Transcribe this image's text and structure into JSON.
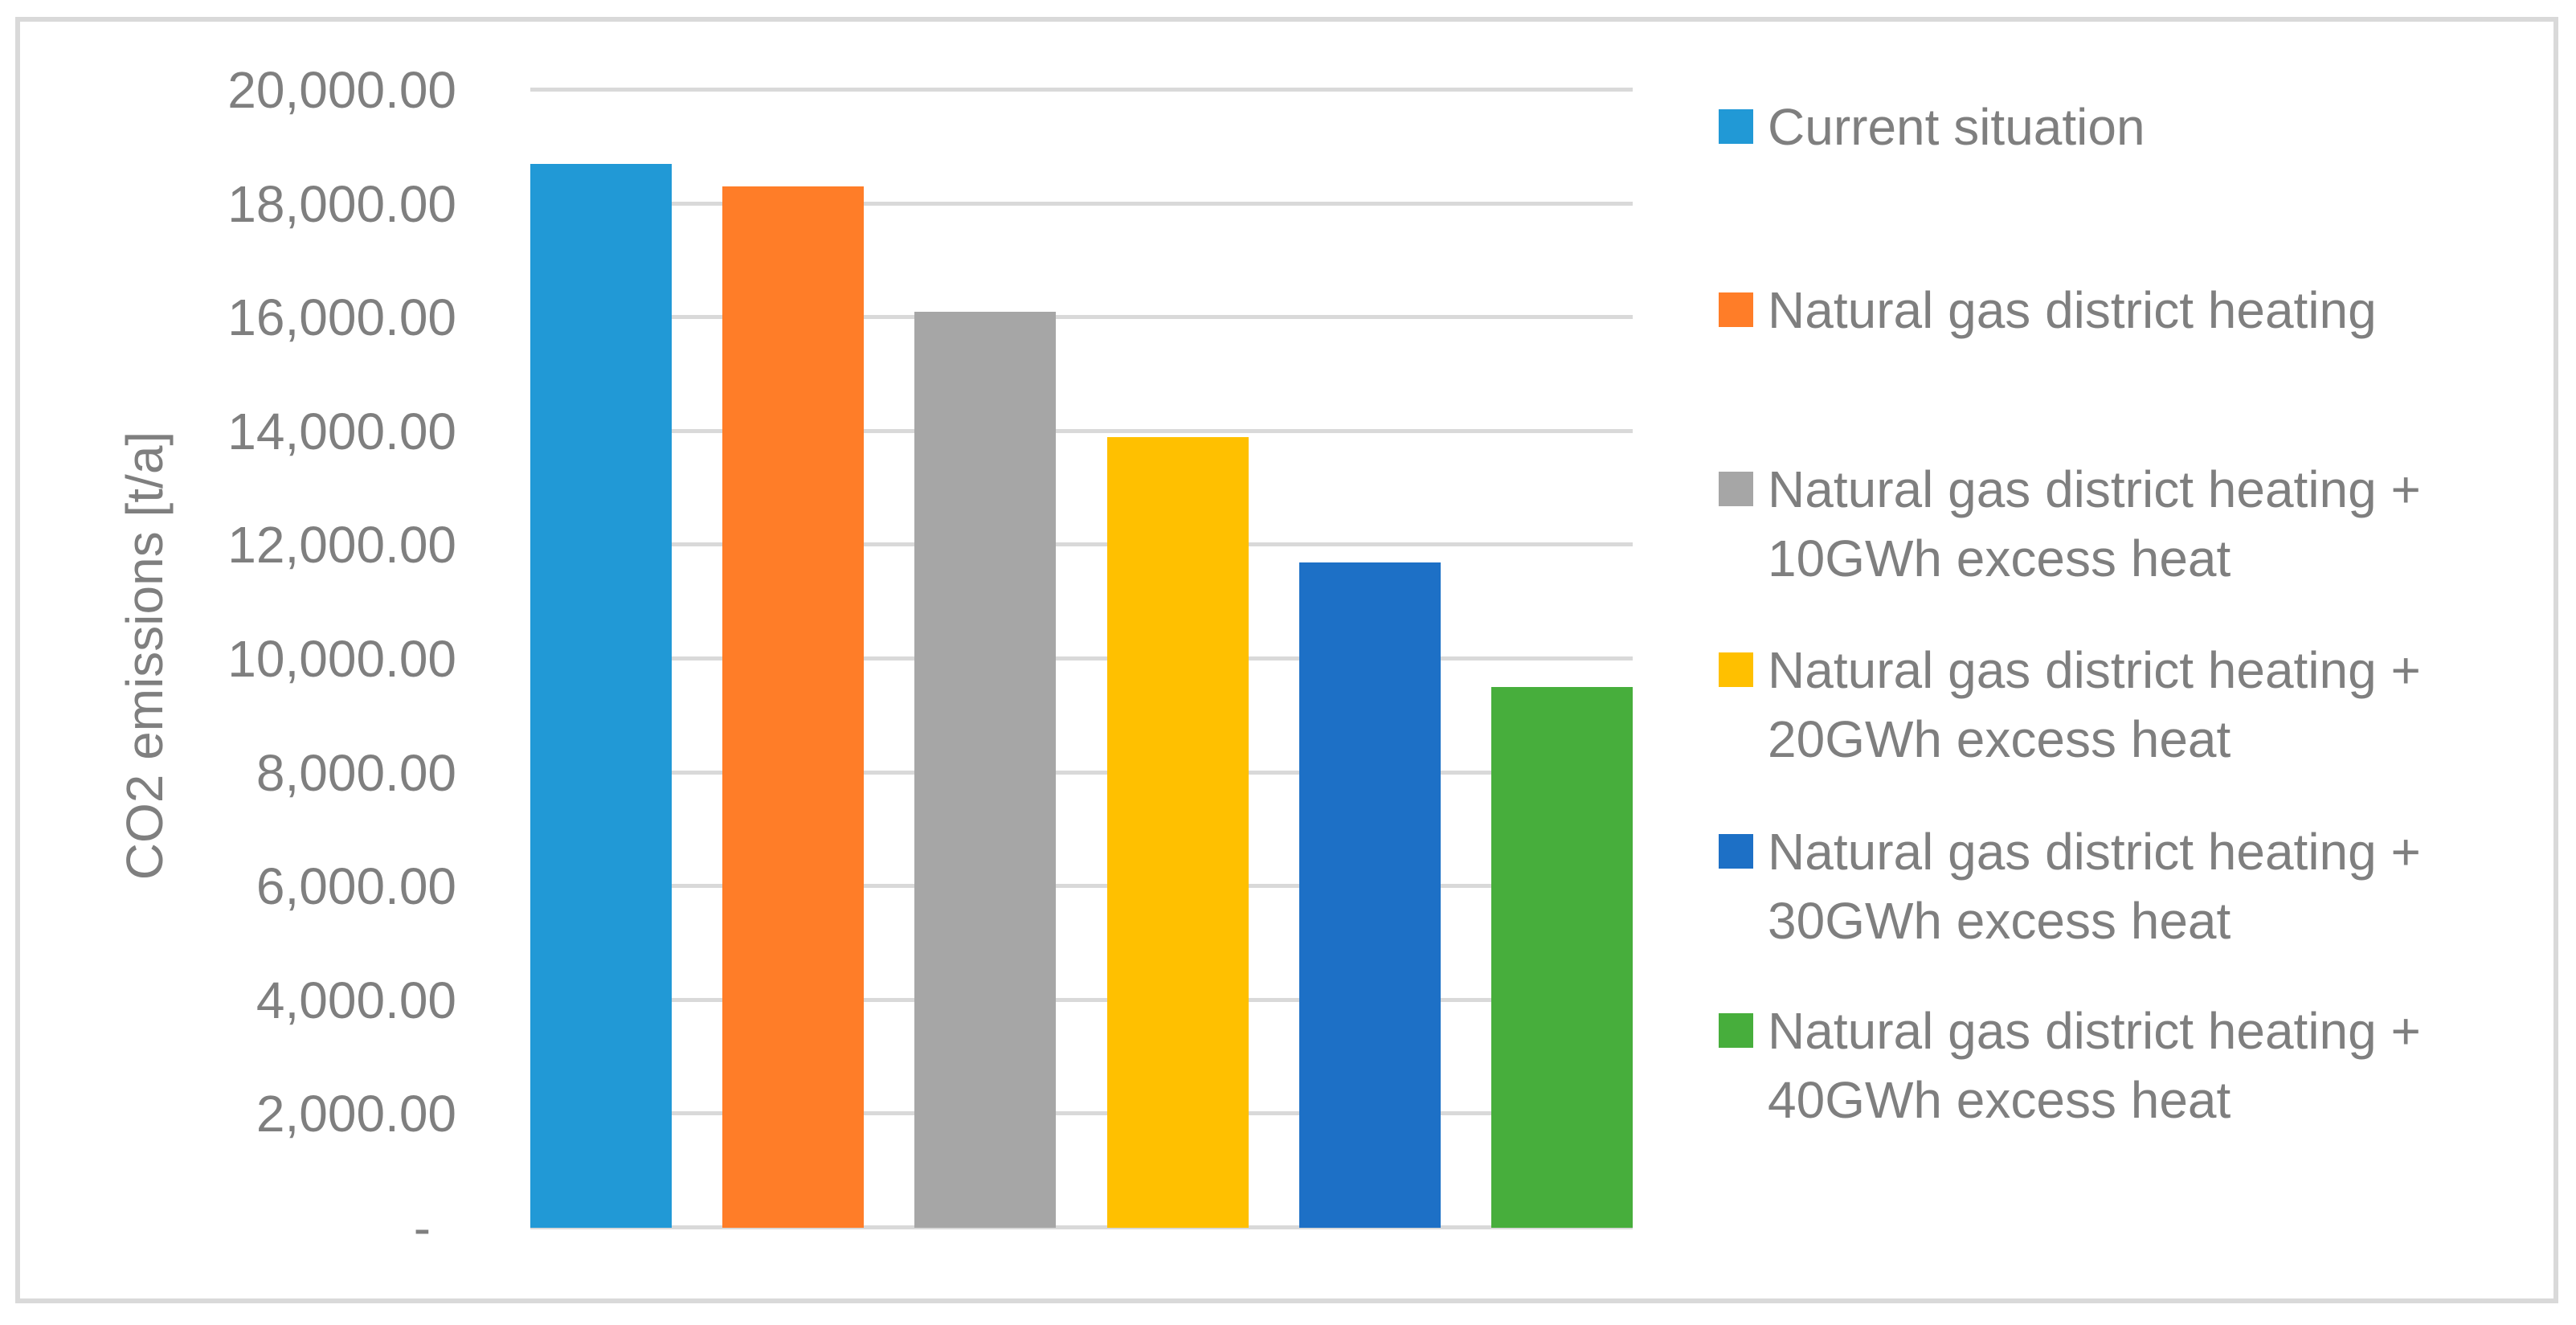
{
  "chart_data": {
    "type": "bar",
    "title": "",
    "xlabel": "",
    "ylabel": "CO2 emissions [t/a]",
    "ylim": [
      0,
      20000
    ],
    "yticks": [
      0,
      2000,
      4000,
      6000,
      8000,
      10000,
      12000,
      14000,
      16000,
      18000,
      20000
    ],
    "ytick_labels": [
      "-",
      "2,000.00",
      "4,000.00",
      "6,000.00",
      "8,000.00",
      "10,000.00",
      "12,000.00",
      "14,000.00",
      "16,000.00",
      "18,000.00",
      "20,000.00"
    ],
    "grid": true,
    "legend_position": "right",
    "series": [
      {
        "name": "Current situation",
        "value": 18700,
        "color": "#2199d6"
      },
      {
        "name": "Natural gas district heating",
        "value": 18300,
        "color": "#ff7d28"
      },
      {
        "name": "Natural gas district heating +\n10GWh excess heat",
        "value": 16100,
        "color": "#a6a6a6"
      },
      {
        "name": "Natural gas district heating +\n20GWh excess heat",
        "value": 13900,
        "color": "#ffc000"
      },
      {
        "name": "Natural gas district heating +\n30GWh excess heat",
        "value": 11700,
        "color": "#1d70c6"
      },
      {
        "name": "Natural gas district heating +\n40GWh excess heat",
        "value": 9500,
        "color": "#47ae3c"
      }
    ],
    "colors": {
      "axis_text": "#7f7f7f",
      "gridline": "#d9d9d9",
      "chart_border": "#d9d9d9",
      "background": "#ffffff"
    }
  }
}
